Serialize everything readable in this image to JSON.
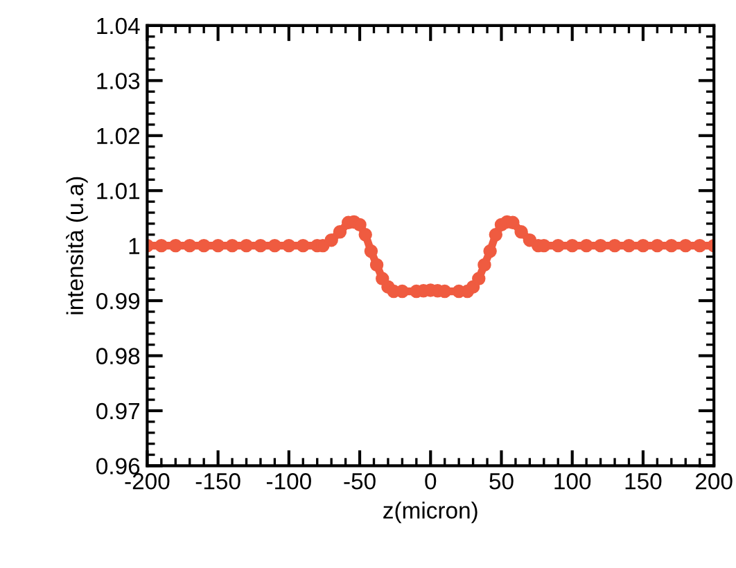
{
  "chart_data": {
    "type": "line",
    "xlabel": "z(micron)",
    "ylabel": "intensità (u.a)",
    "xlim": [
      -200,
      200
    ],
    "xticks": [
      -200,
      -150,
      -100,
      -50,
      0,
      50,
      100,
      150,
      200
    ],
    "ylim": [
      0.96,
      1.04
    ],
    "yticks": [
      0.96,
      0.97,
      0.98,
      0.99,
      1,
      1.01,
      1.02,
      1.03,
      1.04
    ],
    "grid": false,
    "legend": false,
    "marker": "circle",
    "line_style": "solid",
    "series": [
      {
        "color": "#ef5b40",
        "x": [
          -200,
          -190,
          -180,
          -170,
          -160,
          -150,
          -140,
          -130,
          -120,
          -110,
          -100,
          -90,
          -80,
          -76,
          -70,
          -64,
          -58,
          -54,
          -50,
          -46,
          -42,
          -38,
          -34,
          -30,
          -26,
          -20,
          -10,
          -5,
          0,
          5,
          10,
          20,
          26,
          30,
          34,
          38,
          42,
          46,
          50,
          54,
          58,
          64,
          70,
          76,
          80,
          90,
          100,
          110,
          120,
          130,
          140,
          150,
          160,
          170,
          180,
          190,
          200
        ],
        "values": [
          1.0,
          1.0,
          1.0,
          1.0,
          1.0,
          1.0,
          1.0,
          1.0,
          1.0,
          1.0,
          1.0,
          1.0,
          1.0,
          1.0,
          1.001,
          1.0025,
          1.0042,
          1.0043,
          1.0038,
          1.002,
          0.999,
          0.9965,
          0.994,
          0.9925,
          0.9917,
          0.9917,
          0.9917,
          0.9918,
          0.9919,
          0.9918,
          0.9917,
          0.9917,
          0.9917,
          0.9925,
          0.994,
          0.9965,
          0.999,
          1.002,
          1.0038,
          1.0043,
          1.0042,
          1.0025,
          1.001,
          1.0,
          1.0,
          1.0,
          1.0,
          1.0,
          1.0,
          1.0,
          1.0,
          1.0,
          1.0,
          1.0,
          1.0,
          1.0,
          1.0
        ]
      }
    ]
  }
}
